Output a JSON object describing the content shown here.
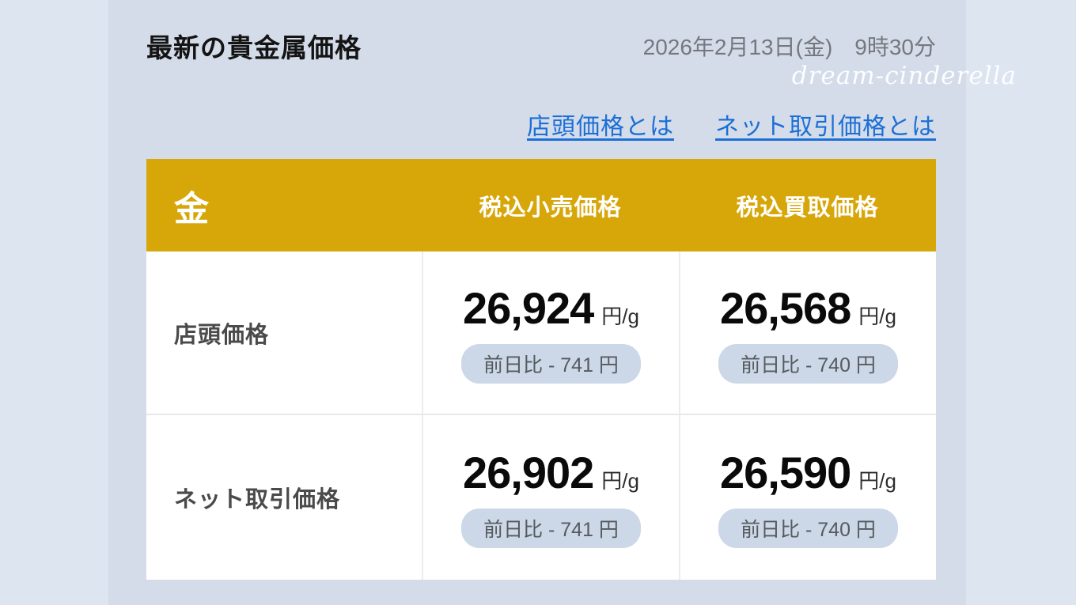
{
  "page": {
    "title": "最新の貴金属価格",
    "datetime": "2026年2月13日(金)　9時30分",
    "watermark": "dream-cinderella"
  },
  "links": [
    {
      "label": "店頭価格とは"
    },
    {
      "label": "ネット取引価格とは"
    }
  ],
  "table": {
    "metal": "金",
    "columns": [
      "税込小売価格",
      "税込買取価格"
    ],
    "rows": [
      {
        "label": "店頭価格",
        "retail": {
          "price": "26,924",
          "unit": "円/g",
          "change": "前日比 - 741 円"
        },
        "purchase": {
          "price": "26,568",
          "unit": "円/g",
          "change": "前日比 - 740 円"
        }
      },
      {
        "label": "ネット取引価格",
        "retail": {
          "price": "26,902",
          "unit": "円/g",
          "change": "前日比 - 741 円"
        },
        "purchase": {
          "price": "26,590",
          "unit": "円/g",
          "change": "前日比 - 740 円"
        }
      }
    ]
  },
  "colors": {
    "gold_header": "#d7a70a",
    "link_blue": "#1c6fd6",
    "badge_bg": "#ccd8e7",
    "page_bg": "#dde5f1",
    "content_bg": "#d4dce9"
  }
}
